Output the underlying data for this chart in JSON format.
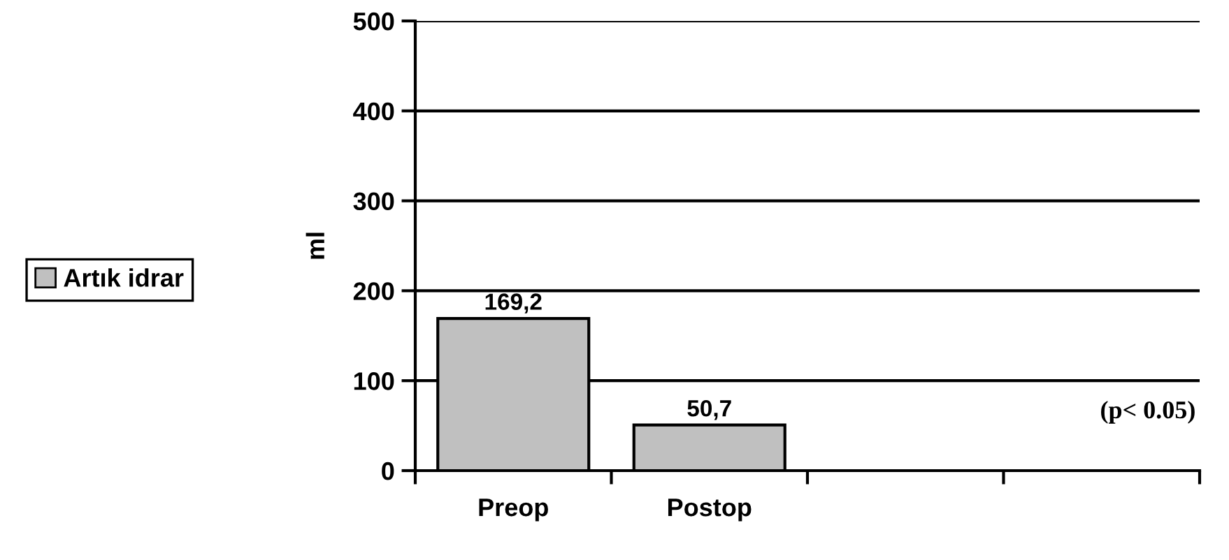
{
  "chart_data": {
    "type": "bar",
    "categories": [
      "Preop",
      "Postop",
      null,
      null
    ],
    "series": [
      {
        "name": "Artık idrar",
        "color": "#c0c0c0",
        "values": [
          169.2,
          50.7,
          null,
          null
        ],
        "value_labels": [
          "169,2",
          "50,7",
          null,
          null
        ]
      }
    ],
    "ylabel": "ml",
    "ylim": [
      0,
      500
    ],
    "yticks": [
      0,
      100,
      200,
      300,
      400,
      500
    ],
    "grid": "y",
    "legend": "left",
    "annotations": [
      "(p< 0.05)"
    ]
  }
}
